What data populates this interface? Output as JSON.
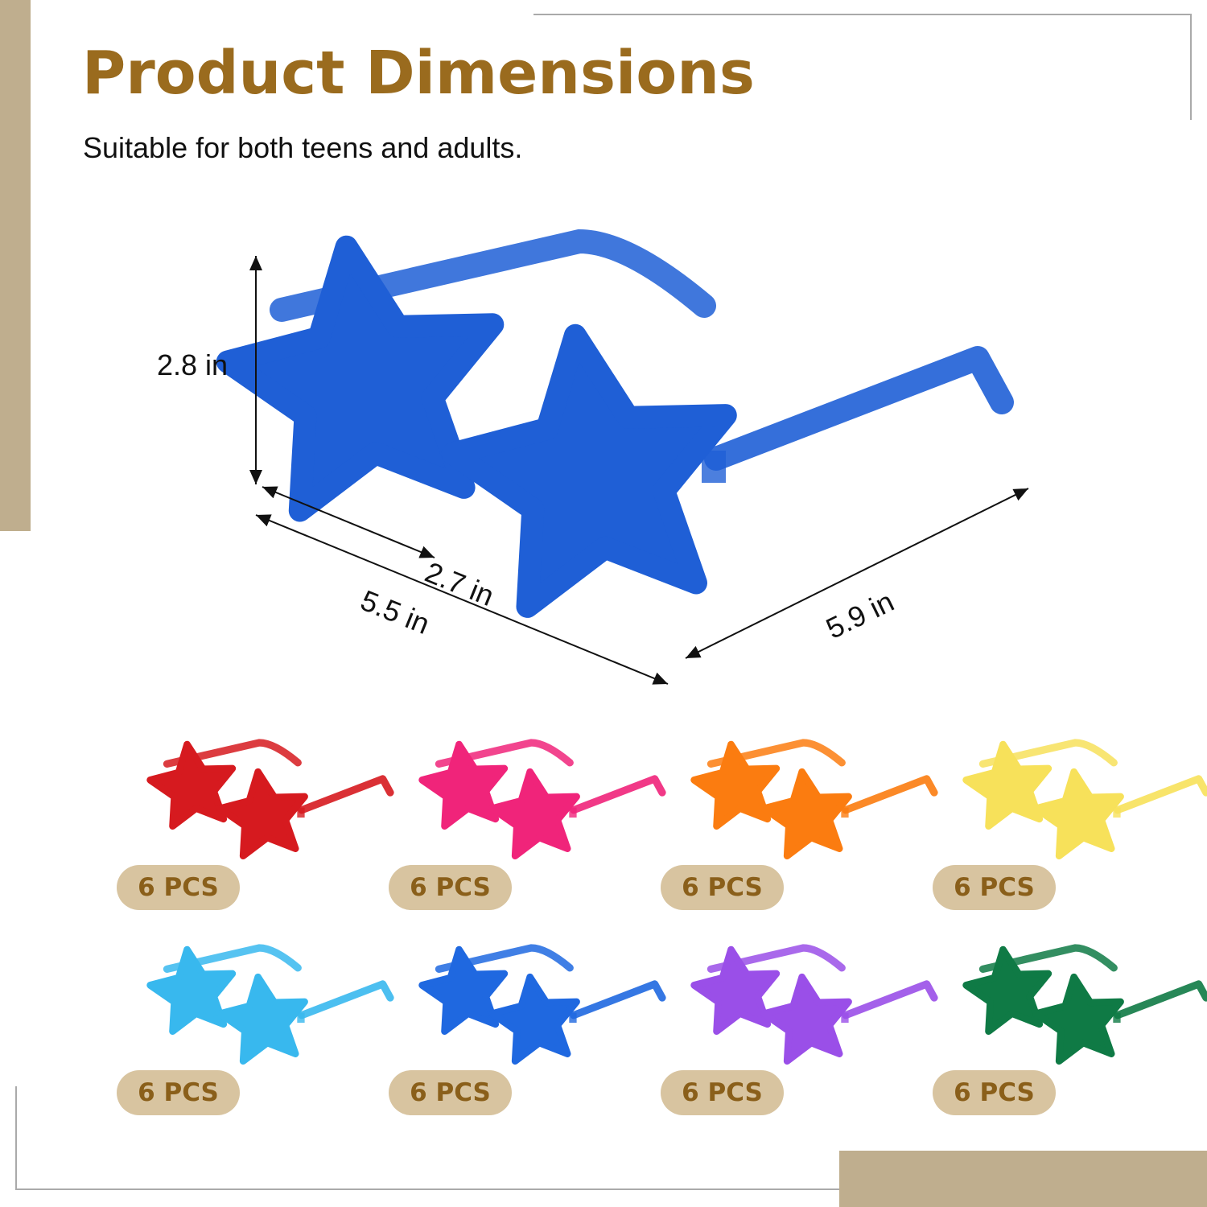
{
  "header": {
    "title": "Product Dimensions",
    "subtitle": "Suitable for both teens and adults."
  },
  "dimensions": {
    "height": "2.8 in",
    "lens_width": "2.7 in",
    "frame_width": "5.5 in",
    "temple_length": "5.9 in"
  },
  "main_product": {
    "color": "#1f5fd6",
    "icon": "star-sunglasses"
  },
  "variants": [
    {
      "color": "#d61a1f",
      "label": "6 PCS"
    },
    {
      "color": "#f0247a",
      "label": "6 PCS"
    },
    {
      "color": "#fb7c10",
      "label": "6 PCS"
    },
    {
      "color": "#f7e15a",
      "label": "6 PCS"
    },
    {
      "color": "#38b8ee",
      "label": "6 PCS"
    },
    {
      "color": "#1f68e0",
      "label": "6 PCS"
    },
    {
      "color": "#9a4fe8",
      "label": "6 PCS"
    },
    {
      "color": "#0f7a45",
      "label": "6 PCS"
    }
  ],
  "theme": {
    "accent": "#9a6b1e",
    "beige": "#bfae8e",
    "badge": "#d8c4a0"
  }
}
